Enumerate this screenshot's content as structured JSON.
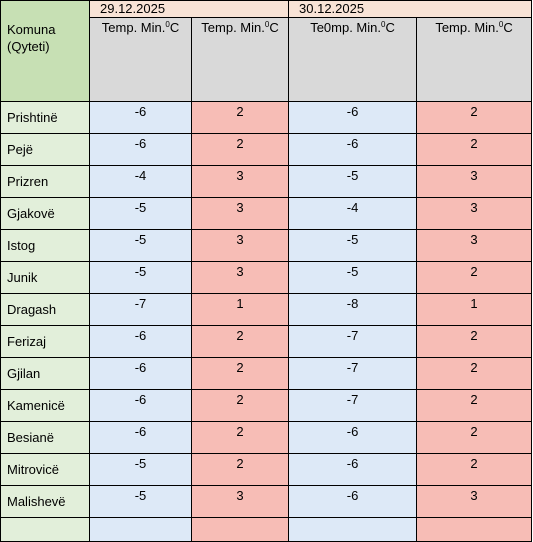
{
  "header": {
    "komuna_line1": "Komuna",
    "komuna_line2": "(Qyteti)",
    "dates": [
      "29.12.2025",
      "30.12.2025"
    ],
    "columns": [
      {
        "pre": "Temp. Min.",
        "sup": "0",
        "post": "C"
      },
      {
        "pre": "Temp. Min.",
        "sup": "0",
        "post": "C"
      },
      {
        "pre": "Te0mp. Min.",
        "sup": "0",
        "post": "C"
      },
      {
        "pre": "Temp. Min.",
        "sup": "0",
        "post": "C"
      }
    ]
  },
  "rows": [
    {
      "name": "Prishtinë",
      "values": [
        "-6",
        "2",
        "-6",
        "2"
      ]
    },
    {
      "name": "Pejë",
      "values": [
        "-6",
        "2",
        "-6",
        "2"
      ]
    },
    {
      "name": "Prizren",
      "values": [
        "-4",
        "3",
        "-5",
        "3"
      ]
    },
    {
      "name": "Gjakovë",
      "values": [
        "-5",
        "3",
        "-4",
        "3"
      ]
    },
    {
      "name": "Istog",
      "values": [
        "-5",
        "3",
        "-5",
        "3"
      ]
    },
    {
      "name": "Junik",
      "values": [
        "-5",
        "3",
        "-5",
        "2"
      ]
    },
    {
      "name": "Dragash",
      "values": [
        "-7",
        "1",
        "-8",
        "1"
      ]
    },
    {
      "name": "Ferizaj",
      "values": [
        "-6",
        "2",
        "-7",
        "2"
      ]
    },
    {
      "name": "Gjilan",
      "values": [
        "-6",
        "2",
        "-7",
        "2"
      ]
    },
    {
      "name": "Kamenicë",
      "values": [
        "-6",
        "2",
        "-7",
        "2"
      ]
    },
    {
      "name": "Besianë",
      "values": [
        "-6",
        "2",
        "-6",
        "2"
      ]
    },
    {
      "name": "Mitrovicë",
      "values": [
        "-5",
        "2",
        "-6",
        "2"
      ]
    },
    {
      "name": "Malishevë",
      "values": [
        "-5",
        "3",
        "-6",
        "3"
      ]
    }
  ],
  "colors": {
    "name_column": "#e2efda",
    "min_cells": "#dde9f7",
    "max_cells": "#f7bdb6",
    "header_date": "#f8e3d6",
    "header_sub": "#d9d9d9",
    "komuna_header": "#c7e0b4"
  }
}
